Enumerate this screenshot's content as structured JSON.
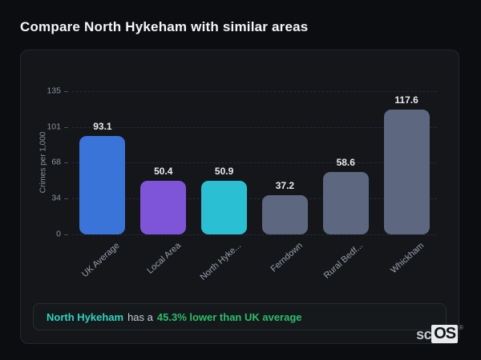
{
  "page": {
    "title": "Compare North Hykeham with similar areas"
  },
  "chart_data": {
    "type": "bar",
    "categories": [
      "UK Average",
      "Local Area",
      "North Hyke...",
      "Ferndown",
      "Rural Bedf...",
      "Whickham"
    ],
    "values": [
      93.1,
      50.4,
      50.9,
      37.2,
      58.6,
      117.6
    ],
    "value_labels": [
      "93.1",
      "50.4",
      "50.9",
      "37.2",
      "58.6",
      "117.6"
    ],
    "bar_colors": [
      "#3b74d8",
      "#7e55d8",
      "#2bbfd4",
      "#5d6880",
      "#5d6880",
      "#5d6880"
    ],
    "title": "",
    "xlabel": "",
    "ylabel": "Crimes per 1,000",
    "yticks": [
      0,
      34,
      68,
      101,
      135
    ],
    "ylim": [
      0,
      135
    ],
    "grid": "dashed-horizontal",
    "legend": "none"
  },
  "note": {
    "area": "North Hykeham",
    "mid": "has a",
    "stat": "45.3% lower than UK average",
    "area_color": "#2dd4bf",
    "stat_color": "#2ebd6b"
  },
  "logo": {
    "prefix": "sc",
    "suffix": "OS",
    "registered": "®"
  }
}
